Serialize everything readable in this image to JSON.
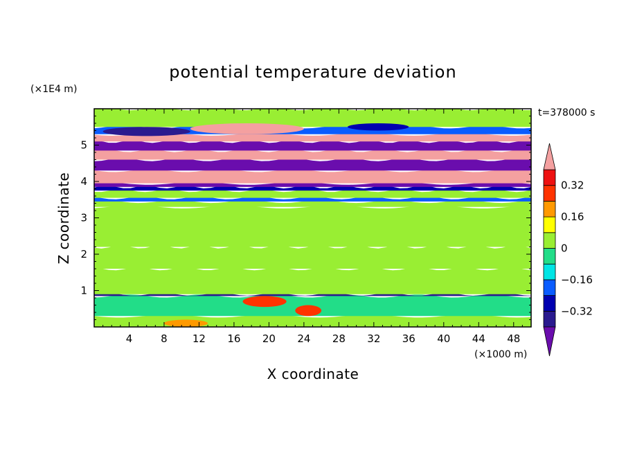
{
  "chart_data": {
    "type": "heatmap",
    "title": "potential temperature deviation",
    "time_label": "t=378000 s",
    "xlabel": "X coordinate",
    "ylabel": "Z coordinate",
    "x_unit": "(×1000 m)",
    "y_unit": "(×1E4 m)",
    "xlim": [
      0,
      50
    ],
    "ylim": [
      0,
      6
    ],
    "x_ticks": [
      4,
      8,
      12,
      16,
      20,
      24,
      28,
      32,
      36,
      40,
      44,
      48
    ],
    "x_tick_labels": [
      "4",
      "8",
      "12",
      "16",
      "20",
      "24",
      "28",
      "32",
      "36",
      "40",
      "44",
      "48"
    ],
    "y_ticks": [
      1,
      2,
      3,
      4,
      5
    ],
    "y_tick_labels": [
      "1",
      "2",
      "3",
      "4",
      "5"
    ],
    "colorbar": {
      "levels": [
        -0.4,
        -0.32,
        -0.24,
        -0.16,
        -0.08,
        0,
        0.08,
        0.16,
        0.24,
        0.32,
        0.4
      ],
      "labels": [
        {
          "value": 0.32,
          "text": "0.32"
        },
        {
          "value": 0.16,
          "text": "0.16"
        },
        {
          "value": 0,
          "text": "0"
        },
        {
          "value": -0.16,
          "text": "−0.16"
        },
        {
          "value": -0.32,
          "text": "−0.32"
        }
      ],
      "colors": [
        "#6a0dad",
        "#2a1a8f",
        "#0000b0",
        "#0a5cff",
        "#00e5e5",
        "#22dd88",
        "#99ee33",
        "#ffff00",
        "#ff9900",
        "#ff3300",
        "#ee1111",
        "#f4a0a0"
      ],
      "under_color": "#6a0dad",
      "over_color": "#f4a0a0"
    },
    "bands": [
      {
        "z": [
          0.0,
          0.3
        ],
        "value": 0.04
      },
      {
        "z": [
          0.3,
          0.85
        ],
        "value": -0.06
      },
      {
        "z": [
          0.85,
          0.9
        ],
        "value": -0.34
      },
      {
        "z": [
          0.9,
          1.6
        ],
        "value": 0.03
      },
      {
        "z": [
          1.6,
          2.2
        ],
        "value": 0.07
      },
      {
        "z": [
          2.2,
          3.3
        ],
        "value": 0.05
      },
      {
        "z": [
          3.3,
          3.45
        ],
        "value": 0.02
      },
      {
        "z": [
          3.45,
          3.55
        ],
        "value": -0.2
      },
      {
        "z": [
          3.55,
          3.75
        ],
        "value": 0.02
      },
      {
        "z": [
          3.75,
          3.85
        ],
        "value": -0.3
      },
      {
        "z": [
          3.85,
          3.95
        ],
        "value": -0.45
      },
      {
        "z": [
          3.95,
          4.3
        ],
        "value": 0.45
      },
      {
        "z": [
          4.3,
          4.6
        ],
        "value": -0.45
      },
      {
        "z": [
          4.6,
          4.85
        ],
        "value": 0.45
      },
      {
        "z": [
          4.85,
          5.1
        ],
        "value": -0.45
      },
      {
        "z": [
          5.1,
          5.3
        ],
        "value": 0.45
      },
      {
        "z": [
          5.3,
          5.5
        ],
        "value": -0.2
      },
      {
        "z": [
          5.5,
          6.0
        ],
        "value": 0.02
      }
    ],
    "features": [
      {
        "x": [
          11,
          24
        ],
        "z": [
          5.3,
          5.6
        ],
        "value": 0.45
      },
      {
        "x": [
          29,
          36
        ],
        "z": [
          5.4,
          5.6
        ],
        "value": -0.3
      },
      {
        "x": [
          1,
          11
        ],
        "z": [
          5.25,
          5.5
        ],
        "value": -0.34
      },
      {
        "x": [
          23,
          26
        ],
        "z": [
          0.3,
          0.6
        ],
        "value": 0.3
      },
      {
        "x": [
          17,
          22
        ],
        "z": [
          0.55,
          0.85
        ],
        "value": 0.24
      },
      {
        "x": [
          8,
          13
        ],
        "z": [
          0.0,
          0.2
        ],
        "value": 0.2
      }
    ],
    "grid": false
  }
}
